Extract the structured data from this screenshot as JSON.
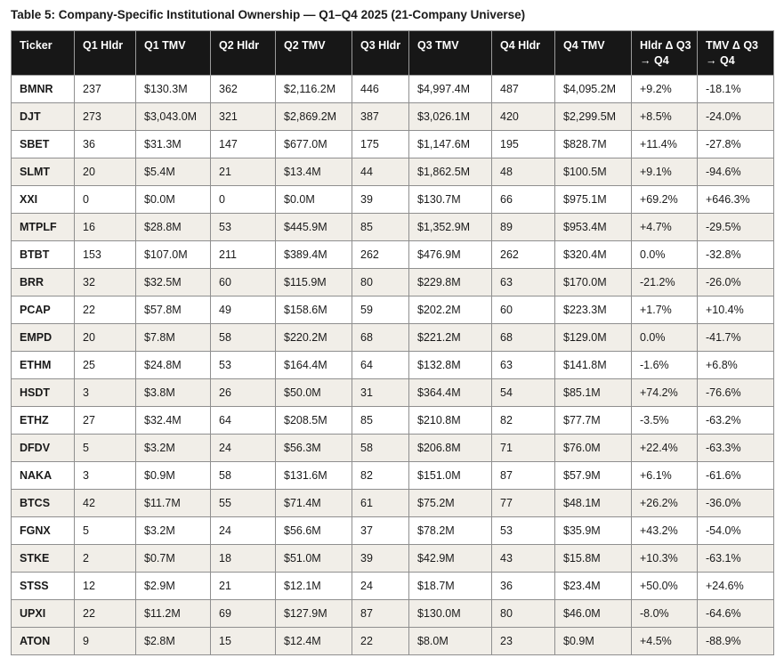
{
  "title": "Table 5: Company-Specific Institutional Ownership — Q1–Q4 2025 (21-Company Universe)",
  "table": {
    "columns": [
      "Ticker",
      "Q1 Hldr",
      "Q1 TMV",
      "Q2 Hldr",
      "Q2 TMV",
      "Q3 Hldr",
      "Q3 TMV",
      "Q4 Hldr",
      "Q4 TMV",
      "Hldr Δ Q3 → Q4",
      "TMV Δ Q3 → Q4"
    ],
    "rows": [
      [
        "BMNR",
        "237",
        "$130.3M",
        "362",
        "$2,116.2M",
        "446",
        "$4,997.4M",
        "487",
        "$4,095.2M",
        "+9.2%",
        "-18.1%"
      ],
      [
        "DJT",
        "273",
        "$3,043.0M",
        "321",
        "$2,869.2M",
        "387",
        "$3,026.1M",
        "420",
        "$2,299.5M",
        "+8.5%",
        "-24.0%"
      ],
      [
        "SBET",
        "36",
        "$31.3M",
        "147",
        "$677.0M",
        "175",
        "$1,147.6M",
        "195",
        "$828.7M",
        "+11.4%",
        "-27.8%"
      ],
      [
        "SLMT",
        "20",
        "$5.4M",
        "21",
        "$13.4M",
        "44",
        "$1,862.5M",
        "48",
        "$100.5M",
        "+9.1%",
        "-94.6%"
      ],
      [
        "XXI",
        "0",
        "$0.0M",
        "0",
        "$0.0M",
        "39",
        "$130.7M",
        "66",
        "$975.1M",
        "+69.2%",
        "+646.3%"
      ],
      [
        "MTPLF",
        "16",
        "$28.8M",
        "53",
        "$445.9M",
        "85",
        "$1,352.9M",
        "89",
        "$953.4M",
        "+4.7%",
        "-29.5%"
      ],
      [
        "BTBT",
        "153",
        "$107.0M",
        "211",
        "$389.4M",
        "262",
        "$476.9M",
        "262",
        "$320.4M",
        "0.0%",
        "-32.8%"
      ],
      [
        "BRR",
        "32",
        "$32.5M",
        "60",
        "$115.9M",
        "80",
        "$229.8M",
        "63",
        "$170.0M",
        "-21.2%",
        "-26.0%"
      ],
      [
        "PCAP",
        "22",
        "$57.8M",
        "49",
        "$158.6M",
        "59",
        "$202.2M",
        "60",
        "$223.3M",
        "+1.7%",
        "+10.4%"
      ],
      [
        "EMPD",
        "20",
        "$7.8M",
        "58",
        "$220.2M",
        "68",
        "$221.2M",
        "68",
        "$129.0M",
        "0.0%",
        "-41.7%"
      ],
      [
        "ETHM",
        "25",
        "$24.8M",
        "53",
        "$164.4M",
        "64",
        "$132.8M",
        "63",
        "$141.8M",
        "-1.6%",
        "+6.8%"
      ],
      [
        "HSDT",
        "3",
        "$3.8M",
        "26",
        "$50.0M",
        "31",
        "$364.4M",
        "54",
        "$85.1M",
        "+74.2%",
        "-76.6%"
      ],
      [
        "ETHZ",
        "27",
        "$32.4M",
        "64",
        "$208.5M",
        "85",
        "$210.8M",
        "82",
        "$77.7M",
        "-3.5%",
        "-63.2%"
      ],
      [
        "DFDV",
        "5",
        "$3.2M",
        "24",
        "$56.3M",
        "58",
        "$206.8M",
        "71",
        "$76.0M",
        "+22.4%",
        "-63.3%"
      ],
      [
        "NAKA",
        "3",
        "$0.9M",
        "58",
        "$131.6M",
        "82",
        "$151.0M",
        "87",
        "$57.9M",
        "+6.1%",
        "-61.6%"
      ],
      [
        "BTCS",
        "42",
        "$11.7M",
        "55",
        "$71.4M",
        "61",
        "$75.2M",
        "77",
        "$48.1M",
        "+26.2%",
        "-36.0%"
      ],
      [
        "FGNX",
        "5",
        "$3.2M",
        "24",
        "$56.6M",
        "37",
        "$78.2M",
        "53",
        "$35.9M",
        "+43.2%",
        "-54.0%"
      ],
      [
        "STKE",
        "2",
        "$0.7M",
        "18",
        "$51.0M",
        "39",
        "$42.9M",
        "43",
        "$15.8M",
        "+10.3%",
        "-63.1%"
      ],
      [
        "STSS",
        "12",
        "$2.9M",
        "21",
        "$12.1M",
        "24",
        "$18.7M",
        "36",
        "$23.4M",
        "+50.0%",
        "+24.6%"
      ],
      [
        "UPXI",
        "22",
        "$11.2M",
        "69",
        "$127.9M",
        "87",
        "$130.0M",
        "80",
        "$46.0M",
        "-8.0%",
        "-64.6%"
      ],
      [
        "ATON",
        "9",
        "$2.8M",
        "15",
        "$12.4M",
        "22",
        "$8.0M",
        "23",
        "$0.9M",
        "+4.5%",
        "-88.9%"
      ]
    ]
  },
  "colors": {
    "header_bg": "#171717",
    "header_text": "#ffffff",
    "stripe_bg": "#f1eee8",
    "row_bg": "#ffffff",
    "border": "#8f8f8f",
    "text": "#1a1a1a"
  }
}
